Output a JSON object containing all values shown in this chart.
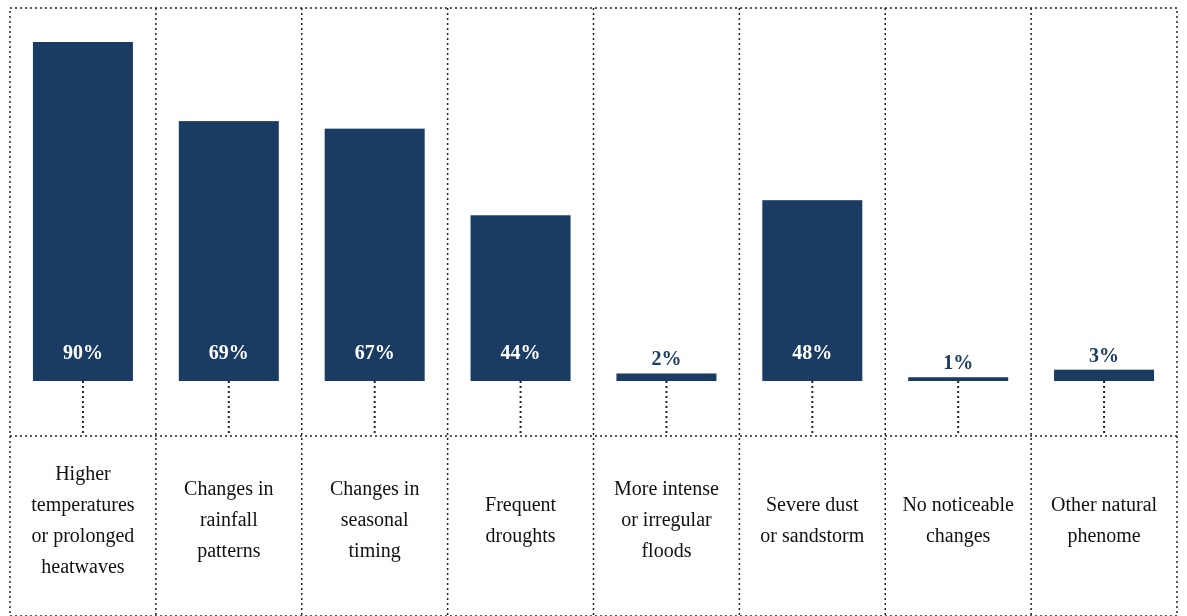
{
  "chart_data": {
    "type": "bar",
    "categories": [
      "Higher temperatures or prolonged heatwaves",
      "Changes in rainfall patterns",
      "Changes in seasonal timing",
      "Frequent droughts",
      "More intense or irregular floods",
      "Severe dust or sandstorm",
      "No noticeable changes",
      "Other natural phenome"
    ],
    "values": [
      90,
      69,
      67,
      44,
      2,
      48,
      1,
      3
    ],
    "color": "#1a3c63",
    "data_labels": true,
    "value_labels": [
      "90%",
      "69%",
      "67%",
      "44%",
      "2%",
      "48%",
      "1%",
      "3%"
    ]
  }
}
